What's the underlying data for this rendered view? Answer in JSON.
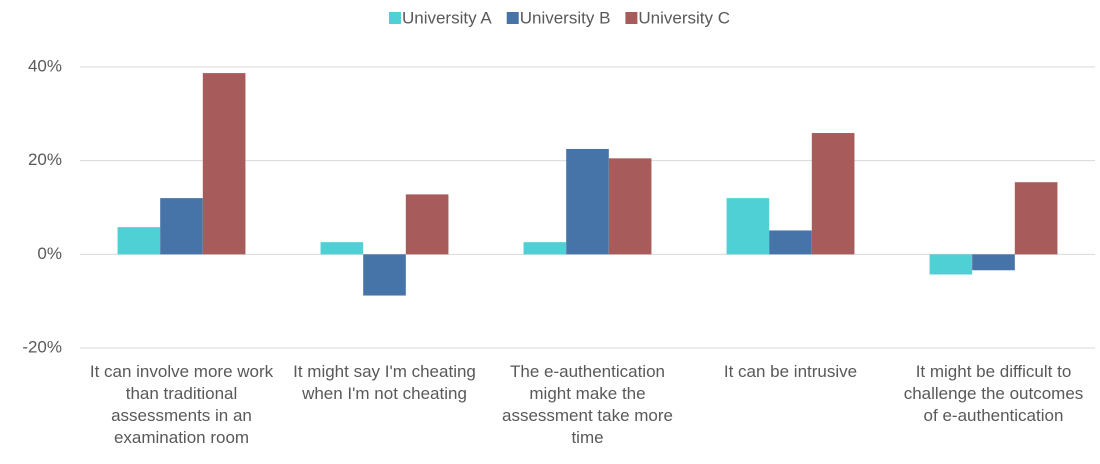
{
  "chart_data": {
    "type": "bar",
    "categories": [
      "It can involve more work than traditional assessments in an examination room",
      "It might say I'm cheating when I'm not cheating",
      "The e-authentication might make the assessment take more time",
      "It can be intrusive",
      "It might be difficult to challenge the outcomes of e-authentication"
    ],
    "series": [
      {
        "name": "University A",
        "color": "#4fd0d4",
        "values": [
          5.8,
          2.6,
          2.6,
          12.0,
          -4.3
        ]
      },
      {
        "name": "University B",
        "color": "#4674a8",
        "values": [
          12.0,
          -8.8,
          22.5,
          5.1,
          -3.4
        ]
      },
      {
        "name": "University C",
        "color": "#a85b5b",
        "values": [
          38.7,
          12.8,
          20.5,
          25.9,
          15.4
        ]
      }
    ],
    "ylim": [
      -20,
      40
    ],
    "yticks": [
      {
        "value": -20,
        "label": "-20%"
      },
      {
        "value": 0,
        "label": "0%"
      },
      {
        "value": 20,
        "label": "20%"
      },
      {
        "value": 40,
        "label": "40%"
      }
    ],
    "grid": true,
    "legend": "top"
  }
}
